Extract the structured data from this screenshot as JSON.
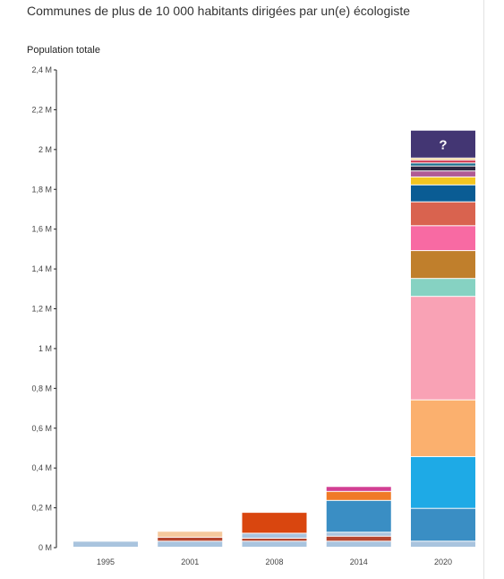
{
  "header": {
    "title": "Communes de plus de 10 000 habitants dirigées par un(e) écologiste"
  },
  "chart_data": {
    "type": "bar",
    "stacked": true,
    "ylabel": "Population totale",
    "ylim": [
      0,
      2.4
    ],
    "yticks": [
      {
        "value": 0,
        "label": "0 M"
      },
      {
        "value": 0.2,
        "label": "0,2 M"
      },
      {
        "value": 0.4,
        "label": "0,4 M"
      },
      {
        "value": 0.6,
        "label": "0,6 M"
      },
      {
        "value": 0.8,
        "label": "0,8 M"
      },
      {
        "value": 1.0,
        "label": "1 M"
      },
      {
        "value": 1.2,
        "label": "1,2 M"
      },
      {
        "value": 1.4,
        "label": "1,4 M"
      },
      {
        "value": 1.6,
        "label": "1,6 M"
      },
      {
        "value": 1.8,
        "label": "1,8 M"
      },
      {
        "value": 2.0,
        "label": "2 M"
      },
      {
        "value": 2.2,
        "label": "2,2 M"
      },
      {
        "value": 2.4,
        "label": "2,4 M"
      }
    ],
    "grid": false,
    "unknown_label": "?",
    "categories": [
      "1995",
      "2001",
      "2008",
      "2014",
      "2020"
    ],
    "stacks": [
      [
        {
          "value": 0.03,
          "color": "#a9c4de"
        }
      ],
      [
        {
          "value": 0.03,
          "color": "#a9c4de"
        },
        {
          "value": 0.02,
          "color": "#b5452f"
        },
        {
          "value": 0.03,
          "color": "#f5c99d"
        }
      ],
      [
        {
          "value": 0.03,
          "color": "#a9c4de"
        },
        {
          "value": 0.015,
          "color": "#b5452f"
        },
        {
          "value": 0.025,
          "color": "#a9c4de"
        },
        {
          "value": 0.105,
          "color": "#d9460f"
        }
      ],
      [
        {
          "value": 0.03,
          "color": "#a9c4de"
        },
        {
          "value": 0.025,
          "color": "#b5452f"
        },
        {
          "value": 0.02,
          "color": "#a9c4de"
        },
        {
          "value": 0.16,
          "color": "#3a8ec4"
        },
        {
          "value": 0.045,
          "color": "#f07a26"
        },
        {
          "value": 0.025,
          "color": "#d23f93"
        }
      ],
      [
        {
          "value": 0.03,
          "color": "#a9c4de"
        },
        {
          "value": 0.165,
          "color": "#3a8ec4"
        },
        {
          "value": 0.26,
          "color": "#1eaae6"
        },
        {
          "value": 0.285,
          "color": "#fbb06e"
        },
        {
          "value": 0.52,
          "color": "#f9a2b5"
        },
        {
          "value": 0.09,
          "color": "#86d2c2"
        },
        {
          "value": 0.14,
          "color": "#c07f2c"
        },
        {
          "value": 0.125,
          "color": "#f86aa3"
        },
        {
          "value": 0.12,
          "color": "#d9634f"
        },
        {
          "value": 0.085,
          "color": "#0a5c94"
        },
        {
          "value": 0.04,
          "color": "#f2c521"
        },
        {
          "value": 0.03,
          "color": "#b05a94"
        },
        {
          "value": 0.025,
          "color": "#2f2742"
        },
        {
          "value": 0.015,
          "color": "#1c6f8d"
        },
        {
          "value": 0.015,
          "color": "#d23f56"
        },
        {
          "value": 0.01,
          "color": "#e8c17a"
        },
        {
          "value": 0.14,
          "color": "#433673",
          "unknown": true
        }
      ]
    ]
  }
}
